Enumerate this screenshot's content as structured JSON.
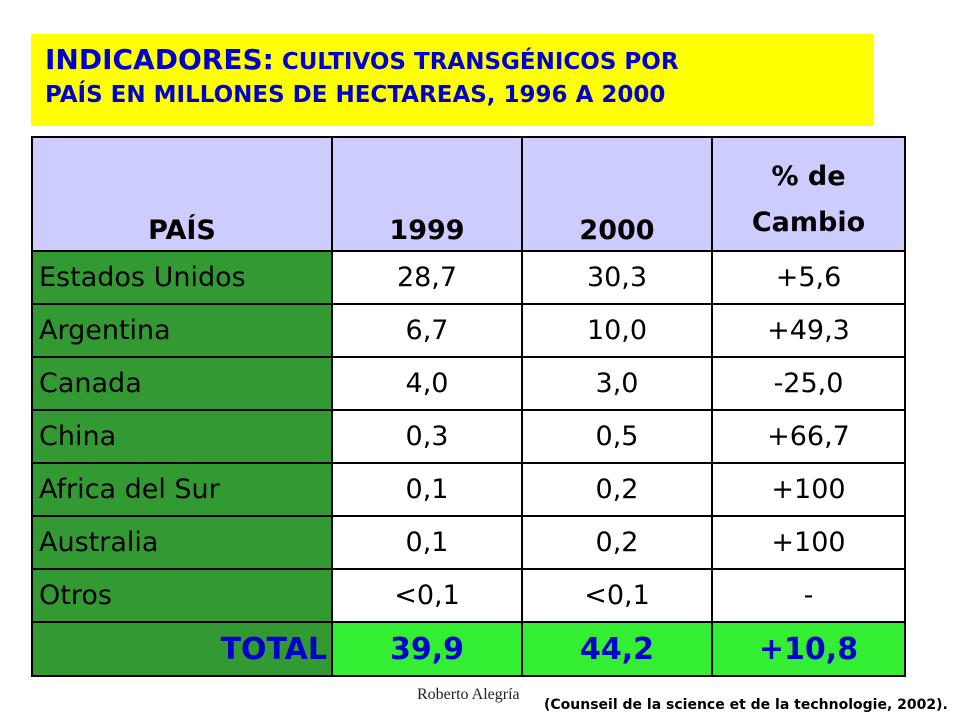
{
  "title": {
    "lead": "INDICADORES:",
    "rest_line1": " CULTIVOS TRANSGÉNICOS POR",
    "line2": "PAÍS EN MILLONES DE HECTAREAS, 1996 A 2000"
  },
  "table": {
    "headers": {
      "country": "PAÍS",
      "y1999": "1999",
      "y2000": "2000",
      "change_line1": "% de",
      "change_line2": "Cambio"
    },
    "rows": [
      {
        "country": "Estados Unidos",
        "y1999": "28,7",
        "y2000": "30,3",
        "change": "+5,6"
      },
      {
        "country": "Argentina",
        "y1999": "6,7",
        "y2000": "10,0",
        "change": "+49,3"
      },
      {
        "country": "Canada",
        "y1999": "4,0",
        "y2000": "3,0",
        "change": "-25,0"
      },
      {
        "country": "China",
        "y1999": "0,3",
        "y2000": "0,5",
        "change": "+66,7"
      },
      {
        "country": "Africa del Sur",
        "y1999": "0,1",
        "y2000": "0,2",
        "change": "+100"
      },
      {
        "country": "Australia",
        "y1999": "0,1",
        "y2000": "0,2",
        "change": "+100"
      },
      {
        "country": "Otros",
        "y1999": "<0,1",
        "y2000": "<0,1",
        "change": "-"
      }
    ],
    "total": {
      "country": "TOTAL",
      "y1999": "39,9",
      "y2000": "44,2",
      "change": "+10,8"
    }
  },
  "author": "Roberto Alegría",
  "source": "(Counseil de la science et de la technologie, 2002).",
  "colors": {
    "title_bg": "#ffff00",
    "title_text": "#0000cc",
    "header_bg": "#ccccff",
    "country_bg": "#339933",
    "total_bg": "#33ee33",
    "total_text": "#0000cc"
  }
}
